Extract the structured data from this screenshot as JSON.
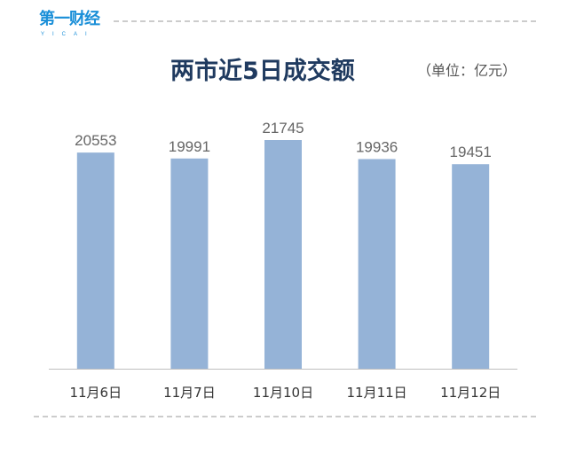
{
  "logo": {
    "text": "第一财经",
    "sub": "YICAI"
  },
  "chart_data": {
    "type": "bar",
    "title": "两市近5日成交额",
    "unit": "（单位：亿元）",
    "categories": [
      "11月6日",
      "11月7日",
      "11月10日",
      "11月11日",
      "11月12日"
    ],
    "values": [
      20553,
      19991,
      21745,
      19936,
      19451
    ],
    "ylim": [
      0,
      21745
    ],
    "grid": false,
    "bar_color": "#95b3d7"
  }
}
